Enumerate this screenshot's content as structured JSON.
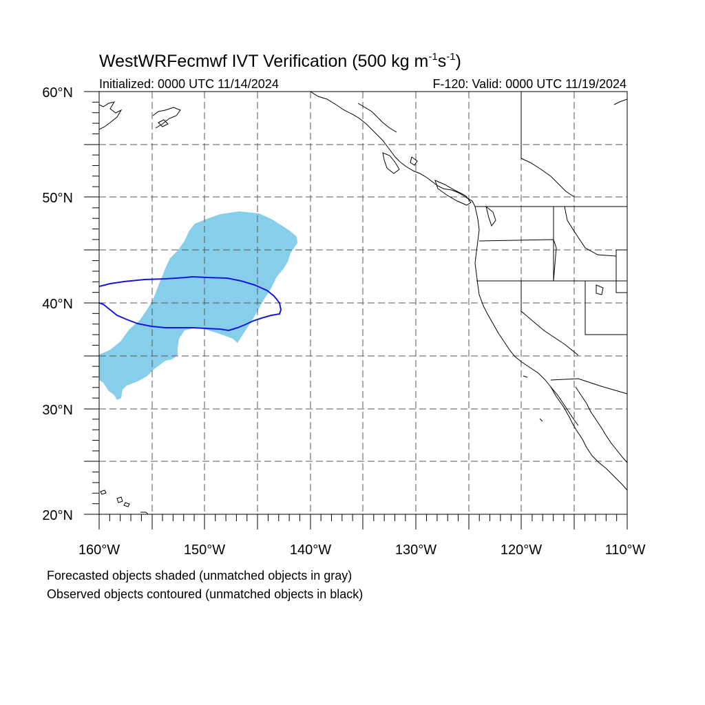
{
  "title_main": "WestWRFecmwf IVT Verification (500 kg m",
  "title_exp1": "-1",
  "title_mid": "s",
  "title_exp2": "-1",
  "title_close": ")",
  "subtitle_left": "Initialized: 0000 UTC 11/14/2024",
  "subtitle_right": "F-120: Valid: 0000 UTC 11/19/2024",
  "lat_labels": [
    "60°N",
    "50°N",
    "40°N",
    "30°N",
    "20°N"
  ],
  "lon_labels": [
    "160°W",
    "150°W",
    "140°W",
    "130°W",
    "120°W",
    "110°W"
  ],
  "caption_line1": "Forecasted objects shaded (unmatched objects in gray)",
  "caption_line2": "Observed objects contoured (unmatched objects in black)",
  "colors": {
    "forecast_fill": "#87ceeb",
    "observed_contour": "#1515e0",
    "coast": "#000000",
    "grid": "#555555"
  },
  "map_extent": {
    "lon_min": -160,
    "lon_max": -110,
    "lat_min": 20,
    "lat_max": 60
  }
}
